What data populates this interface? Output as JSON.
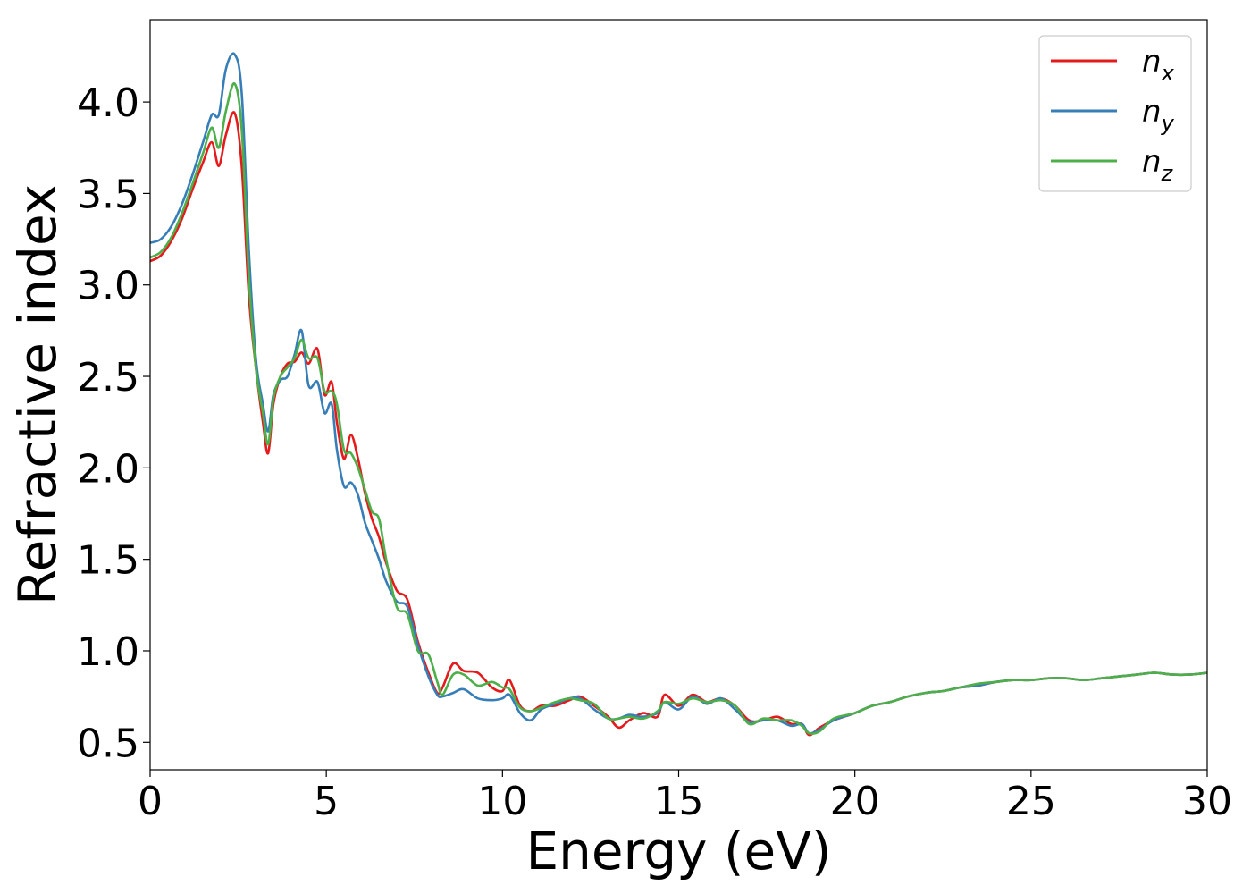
{
  "chart_data": {
    "type": "line",
    "title": "",
    "xlabel": "Energy (eV)",
    "ylabel": "Refractive index",
    "xlim": [
      0,
      30
    ],
    "ylim": [
      0.35,
      4.45
    ],
    "xticks": [
      0,
      5,
      10,
      15,
      20,
      25,
      30
    ],
    "xtick_labels": [
      "0",
      "5",
      "10",
      "15",
      "20",
      "25",
      "30"
    ],
    "yticks": [
      0.5,
      1.0,
      1.5,
      2.0,
      2.5,
      3.0,
      3.5,
      4.0
    ],
    "ytick_labels": [
      "0.5",
      "1.0",
      "1.5",
      "2.0",
      "2.5",
      "3.0",
      "3.5",
      "4.0"
    ],
    "grid": false,
    "legend_position": "top-right",
    "series": [
      {
        "name": "n_x",
        "label_base": "n",
        "label_sub": "x",
        "color": "#e41a1c",
        "x": [
          0,
          0.3,
          0.6,
          0.9,
          1.2,
          1.5,
          1.75,
          1.95,
          2.15,
          2.4,
          2.6,
          2.8,
          3.0,
          3.2,
          3.35,
          3.5,
          3.7,
          3.9,
          4.1,
          4.3,
          4.5,
          4.75,
          4.95,
          5.15,
          5.3,
          5.5,
          5.7,
          5.9,
          6.1,
          6.3,
          6.5,
          6.7,
          7.0,
          7.3,
          7.6,
          7.9,
          8.15,
          8.3,
          8.6,
          8.9,
          9.3,
          9.7,
          10.0,
          10.2,
          10.5,
          10.8,
          11.1,
          11.5,
          11.9,
          12.2,
          12.6,
          13.0,
          13.3,
          13.6,
          14.0,
          14.4,
          14.6,
          15.0,
          15.4,
          15.8,
          16.2,
          16.6,
          17.0,
          17.4,
          17.8,
          18.2,
          18.5,
          18.7,
          19.0,
          19.4,
          20.0,
          20.5,
          21.0,
          21.5,
          22.0,
          22.5,
          23.0,
          23.5,
          24.0,
          24.5,
          25.0,
          25.5,
          26.0,
          26.5,
          27.0,
          27.5,
          28.0,
          28.5,
          29.0,
          29.5,
          30.0
        ],
        "y": [
          3.13,
          3.16,
          3.24,
          3.36,
          3.52,
          3.67,
          3.78,
          3.65,
          3.82,
          3.94,
          3.65,
          2.95,
          2.55,
          2.25,
          2.08,
          2.35,
          2.5,
          2.57,
          2.58,
          2.63,
          2.57,
          2.65,
          2.4,
          2.47,
          2.25,
          2.05,
          2.18,
          2.05,
          1.86,
          1.72,
          1.62,
          1.48,
          1.33,
          1.28,
          1.05,
          0.88,
          0.77,
          0.8,
          0.93,
          0.89,
          0.88,
          0.8,
          0.78,
          0.84,
          0.7,
          0.67,
          0.7,
          0.7,
          0.73,
          0.75,
          0.7,
          0.64,
          0.58,
          0.62,
          0.66,
          0.64,
          0.76,
          0.7,
          0.76,
          0.72,
          0.74,
          0.7,
          0.62,
          0.62,
          0.64,
          0.6,
          0.6,
          0.54,
          0.58,
          0.62,
          0.66,
          0.7,
          0.72,
          0.75,
          0.77,
          0.78,
          0.8,
          0.81,
          0.83,
          0.84,
          0.84,
          0.85,
          0.85,
          0.84,
          0.85,
          0.86,
          0.87,
          0.88,
          0.87,
          0.87,
          0.88
        ]
      },
      {
        "name": "n_y",
        "label_base": "n",
        "label_sub": "y",
        "color": "#377eb8",
        "x": [
          0,
          0.3,
          0.6,
          0.9,
          1.2,
          1.5,
          1.75,
          1.95,
          2.15,
          2.4,
          2.6,
          2.8,
          3.0,
          3.2,
          3.35,
          3.5,
          3.7,
          3.9,
          4.1,
          4.3,
          4.5,
          4.75,
          4.95,
          5.15,
          5.3,
          5.5,
          5.7,
          5.9,
          6.1,
          6.3,
          6.5,
          6.7,
          7.0,
          7.3,
          7.6,
          7.9,
          8.15,
          8.3,
          8.6,
          8.9,
          9.3,
          9.7,
          10.0,
          10.2,
          10.5,
          10.8,
          11.1,
          11.5,
          11.9,
          12.2,
          12.6,
          13.0,
          13.3,
          13.6,
          14.0,
          14.4,
          14.6,
          15.0,
          15.4,
          15.8,
          16.2,
          16.6,
          17.0,
          17.4,
          17.8,
          18.2,
          18.5,
          18.7,
          19.0,
          19.4,
          20.0,
          20.5,
          21.0,
          21.5,
          22.0,
          22.5,
          23.0,
          23.5,
          24.0,
          24.5,
          25.0,
          25.5,
          26.0,
          26.5,
          27.0,
          27.5,
          28.0,
          28.5,
          29.0,
          29.5,
          30.0
        ],
        "y": [
          3.23,
          3.25,
          3.32,
          3.44,
          3.6,
          3.78,
          3.93,
          3.93,
          4.18,
          4.26,
          4.05,
          3.2,
          2.6,
          2.35,
          2.2,
          2.4,
          2.48,
          2.5,
          2.62,
          2.75,
          2.45,
          2.47,
          2.3,
          2.35,
          2.1,
          1.9,
          1.92,
          1.85,
          1.7,
          1.6,
          1.5,
          1.38,
          1.27,
          1.24,
          1.03,
          0.86,
          0.76,
          0.75,
          0.77,
          0.79,
          0.74,
          0.73,
          0.74,
          0.76,
          0.66,
          0.62,
          0.68,
          0.71,
          0.74,
          0.74,
          0.68,
          0.63,
          0.63,
          0.65,
          0.64,
          0.66,
          0.72,
          0.68,
          0.75,
          0.71,
          0.74,
          0.68,
          0.61,
          0.62,
          0.62,
          0.59,
          0.6,
          0.55,
          0.57,
          0.62,
          0.66,
          0.7,
          0.72,
          0.75,
          0.77,
          0.78,
          0.8,
          0.81,
          0.83,
          0.84,
          0.84,
          0.85,
          0.85,
          0.84,
          0.85,
          0.86,
          0.87,
          0.88,
          0.87,
          0.87,
          0.88
        ]
      },
      {
        "name": "n_z",
        "label_base": "n",
        "label_sub": "z",
        "color": "#4daf4a",
        "x": [
          0,
          0.3,
          0.6,
          0.9,
          1.2,
          1.5,
          1.75,
          1.95,
          2.15,
          2.4,
          2.6,
          2.8,
          3.0,
          3.2,
          3.35,
          3.5,
          3.7,
          3.9,
          4.1,
          4.3,
          4.5,
          4.75,
          4.95,
          5.15,
          5.3,
          5.5,
          5.7,
          5.9,
          6.1,
          6.3,
          6.5,
          6.7,
          7.0,
          7.3,
          7.6,
          7.9,
          8.15,
          8.3,
          8.6,
          8.9,
          9.3,
          9.7,
          10.0,
          10.2,
          10.5,
          10.8,
          11.1,
          11.5,
          11.9,
          12.2,
          12.6,
          13.0,
          13.3,
          13.6,
          14.0,
          14.4,
          14.6,
          15.0,
          15.4,
          15.8,
          16.2,
          16.6,
          17.0,
          17.4,
          17.8,
          18.2,
          18.5,
          18.7,
          19.0,
          19.4,
          20.0,
          20.5,
          21.0,
          21.5,
          22.0,
          22.5,
          23.0,
          23.5,
          24.0,
          24.5,
          25.0,
          25.5,
          26.0,
          26.5,
          27.0,
          27.5,
          28.0,
          28.5,
          29.0,
          29.5,
          30.0
        ],
        "y": [
          3.15,
          3.18,
          3.26,
          3.39,
          3.55,
          3.72,
          3.86,
          3.75,
          3.95,
          4.1,
          3.85,
          3.05,
          2.55,
          2.3,
          2.13,
          2.38,
          2.5,
          2.55,
          2.6,
          2.7,
          2.6,
          2.6,
          2.42,
          2.42,
          2.35,
          2.1,
          2.08,
          2.0,
          1.88,
          1.76,
          1.72,
          1.5,
          1.24,
          1.2,
          1.0,
          0.98,
          0.83,
          0.76,
          0.87,
          0.87,
          0.81,
          0.83,
          0.8,
          0.79,
          0.69,
          0.67,
          0.69,
          0.72,
          0.74,
          0.73,
          0.71,
          0.63,
          0.63,
          0.64,
          0.63,
          0.67,
          0.72,
          0.71,
          0.74,
          0.72,
          0.73,
          0.7,
          0.6,
          0.63,
          0.62,
          0.62,
          0.59,
          0.55,
          0.56,
          0.63,
          0.66,
          0.7,
          0.72,
          0.75,
          0.77,
          0.78,
          0.8,
          0.82,
          0.83,
          0.84,
          0.84,
          0.85,
          0.85,
          0.84,
          0.85,
          0.86,
          0.87,
          0.88,
          0.87,
          0.87,
          0.88
        ]
      }
    ]
  }
}
